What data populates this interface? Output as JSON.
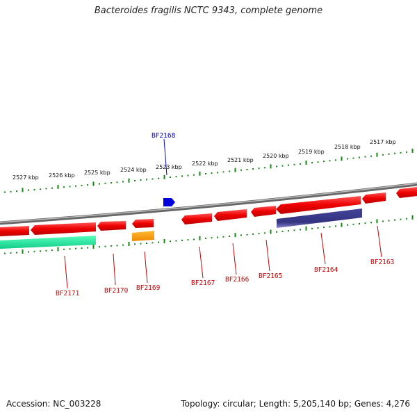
{
  "title": "Bacteroides fragilis NCTC 9343, complete genome",
  "footer": {
    "accession": "Accession: NC_003228",
    "info": "Topology: circular; Length: 5,205,140 bp; Genes: 4,276"
  },
  "colors": {
    "backbone": "#888888",
    "ticks": "#118811",
    "cds": "#ee0000",
    "cds_label": "#cc0000",
    "forward_gene": "#0000dd",
    "teal_gene": "#11dd99",
    "orange_gene": "#ff9900",
    "navy_gene": "#333388"
  },
  "scale_labels": [
    "2527 kbp",
    "2526 kbp",
    "2525 kbp",
    "2524 kbp",
    "2523 kbp",
    "2522 kbp",
    "2521 kbp",
    "2520 kbp",
    "2519 kbp",
    "2518 kbp",
    "2517 kbp"
  ],
  "gene_labels": {
    "bf2168": "BF2168",
    "bf2171": "BF2171",
    "bf2170": "BF2170",
    "bf2169": "BF2169",
    "bf2167": "BF2167",
    "bf2166": "BF2166",
    "bf2165": "BF2165",
    "bf2164": "BF2164",
    "bf2163": "BF2163"
  }
}
